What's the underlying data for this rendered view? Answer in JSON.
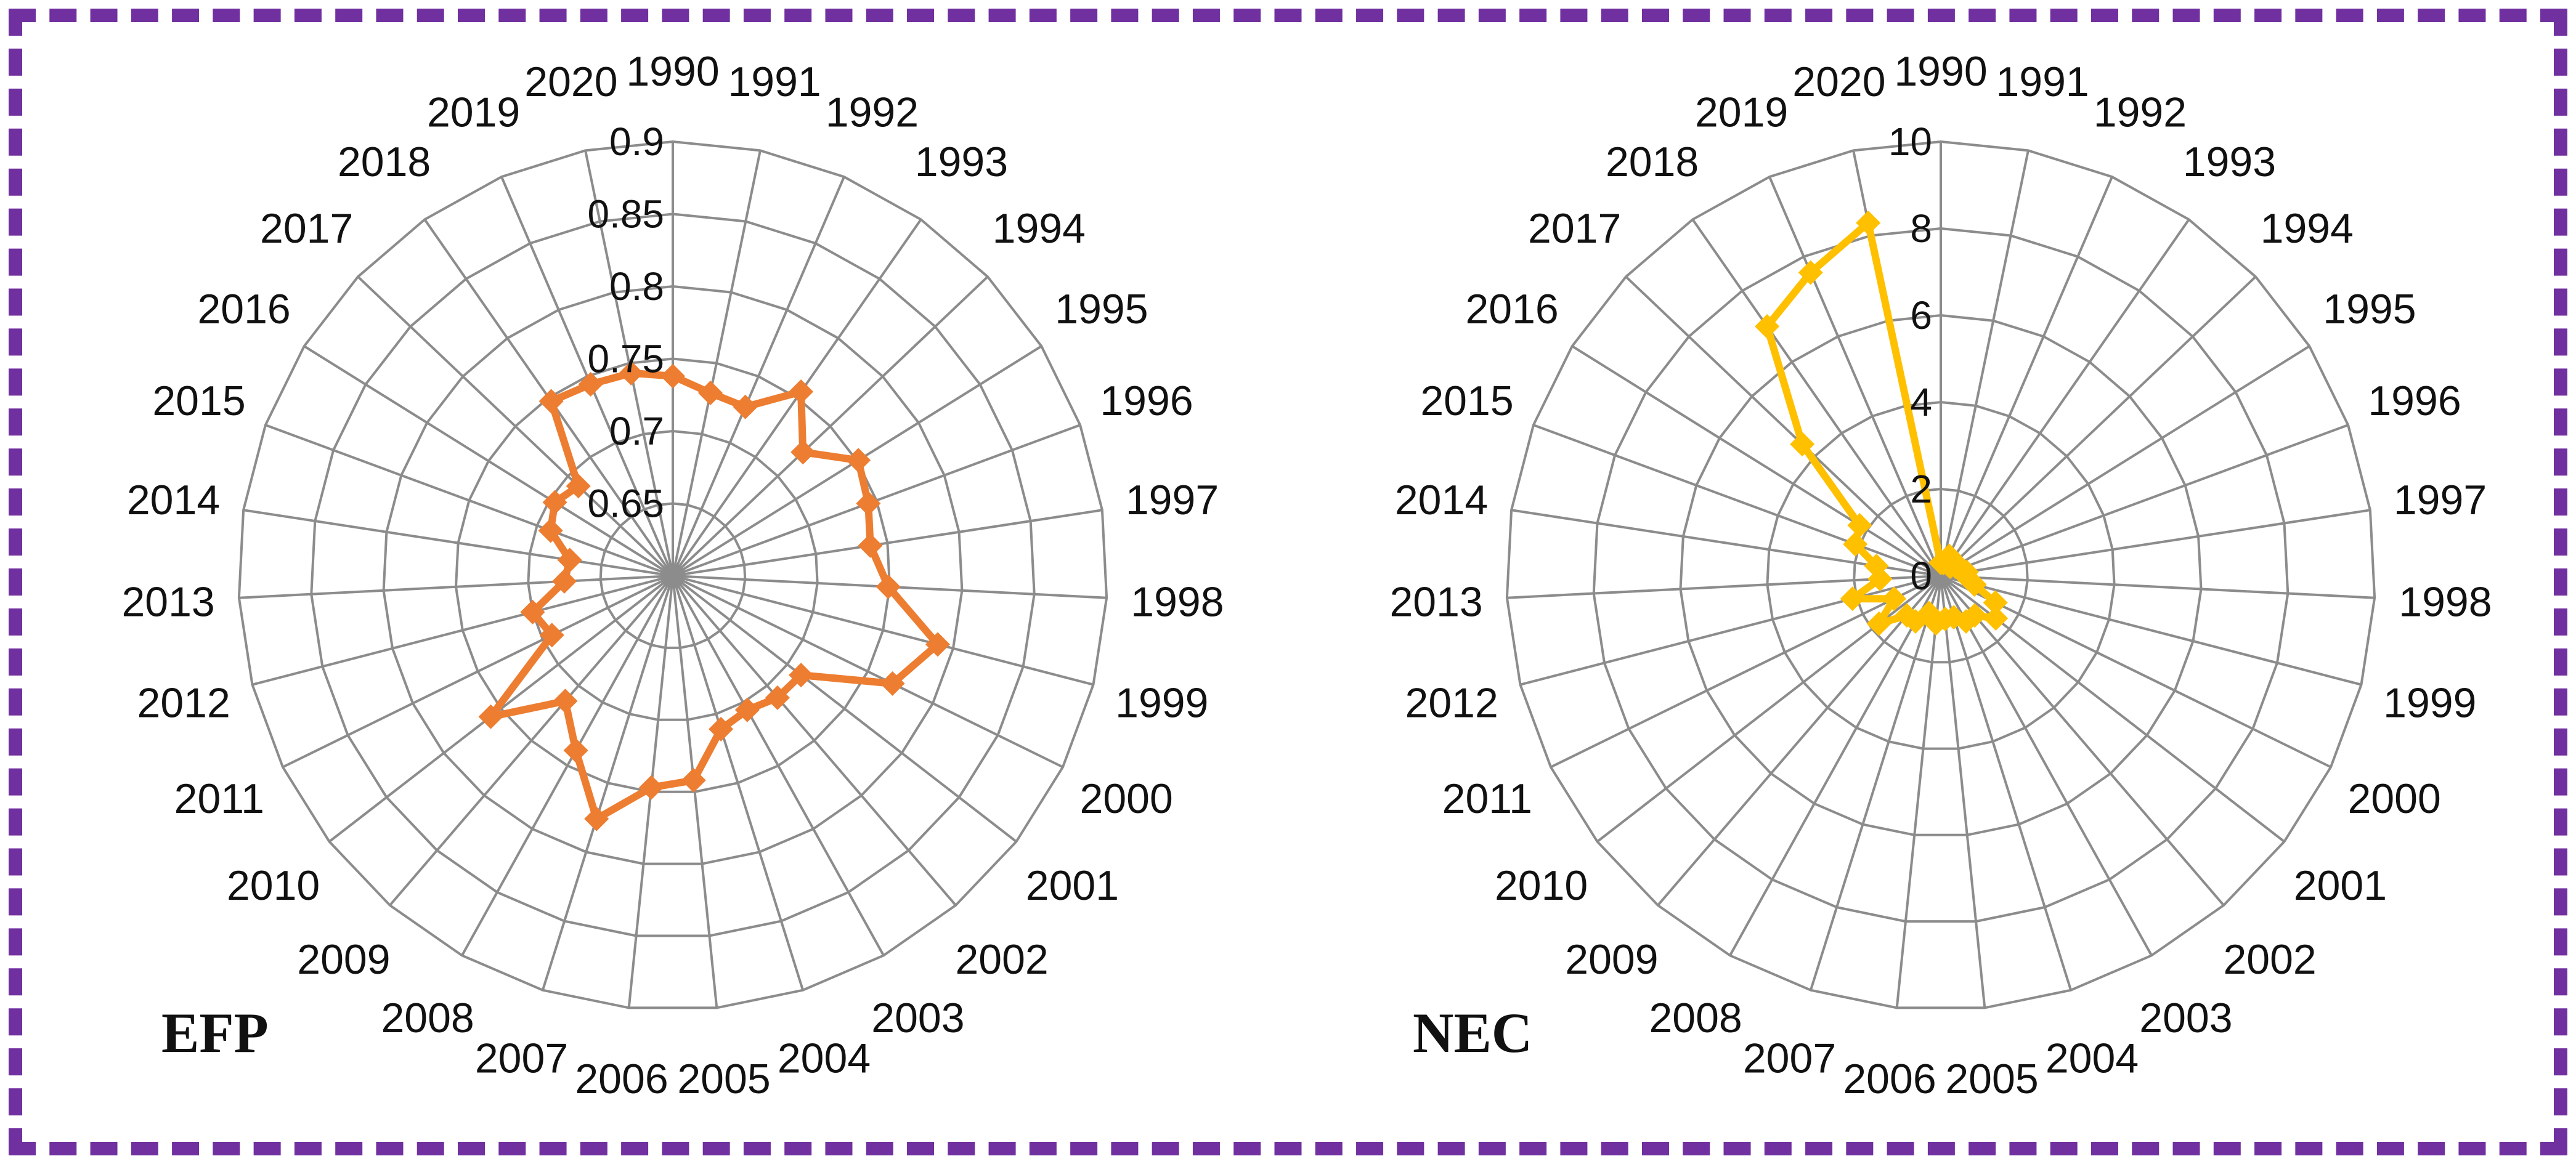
{
  "frame": {
    "border_color": "#7030a0"
  },
  "chart_data": [
    {
      "type": "radar",
      "panel_label": "EFP",
      "color": "#ed7d31",
      "categories": [
        "1990",
        "1991",
        "1992",
        "1993",
        "1994",
        "1995",
        "1996",
        "1997",
        "1998",
        "1999",
        "2000",
        "2001",
        "2002",
        "2003",
        "2004",
        "2005",
        "2006",
        "2007",
        "2008",
        "2009",
        "2010",
        "2011",
        "2012",
        "2013",
        "2014",
        "2015",
        "2016",
        "2017",
        "2018",
        "2019",
        "2020"
      ],
      "values": [
        0.738,
        0.729,
        0.727,
        0.755,
        0.724,
        0.751,
        0.744,
        0.738,
        0.749,
        0.789,
        0.769,
        0.712,
        0.711,
        0.706,
        0.711,
        0.742,
        0.747,
        0.776,
        0.738,
        0.714,
        0.759,
        0.693,
        0.7,
        0.675,
        0.672,
        0.69,
        0.696,
        0.69,
        0.747,
        0.744,
        0.743
      ],
      "rlim": [
        0.6,
        0.9
      ],
      "ticks": [
        0.65,
        0.7,
        0.75,
        0.8,
        0.85,
        0.9
      ],
      "tick_labels": [
        "0.65",
        "0.7",
        "0.75",
        "0.8",
        "0.85",
        "0.9"
      ]
    },
    {
      "type": "radar",
      "panel_label": "NEC",
      "color": "#ffc000",
      "categories": [
        "1990",
        "1991",
        "1992",
        "1993",
        "1994",
        "1995",
        "1996",
        "1997",
        "1998",
        "1999",
        "2000",
        "2001",
        "2002",
        "2003",
        "2004",
        "2005",
        "2006",
        "2007",
        "2008",
        "2009",
        "2010",
        "2011",
        "2012",
        "2013",
        "2014",
        "2015",
        "2016",
        "2017",
        "2018",
        "2019",
        "2020"
      ],
      "values": [
        0.3,
        0.3,
        0.5,
        0.3,
        0.3,
        0.4,
        0.5,
        0.6,
        0.6,
        0.8,
        1.4,
        1.6,
        1.2,
        1.2,
        1.0,
        1.0,
        1.1,
        0.9,
        1.2,
        1.2,
        1.8,
        1.2,
        2.1,
        1.4,
        1.5,
        2.1,
        2.2,
        4.4,
        7.0,
        7.6,
        8.3
      ],
      "rlim": [
        0,
        10
      ],
      "ticks": [
        0,
        2,
        4,
        6,
        8,
        10
      ],
      "tick_labels": [
        "0",
        "2",
        "4",
        "6",
        "8",
        "10"
      ]
    }
  ]
}
